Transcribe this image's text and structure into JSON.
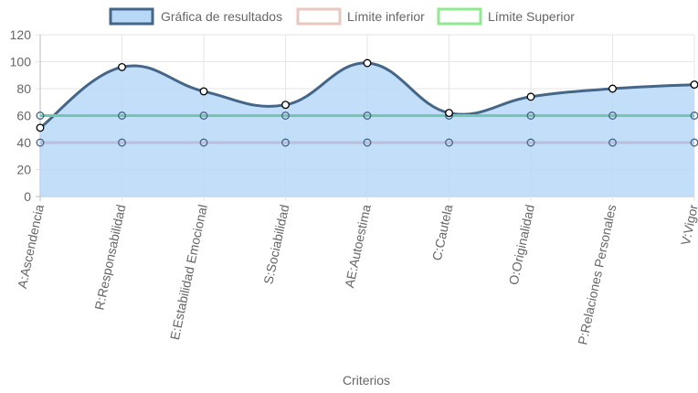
{
  "chart_data": {
    "type": "line",
    "categories": [
      "A:Ascendencia",
      "R:Responsabilidad",
      "E:Estabilidad Emocional",
      "S:Sociabilidad",
      "AE:Autoestima",
      "C:Cautela",
      "O:Originalidad",
      "P:Relaciones Personales",
      "V:Vigor"
    ],
    "series": [
      {
        "name": "Gráfica de resultados",
        "values": [
          51,
          96,
          78,
          68,
          99,
          62,
          74,
          80,
          83
        ],
        "fill": true,
        "line_color": "#446688",
        "fill_color": "#b8d8f8"
      },
      {
        "name": "Límite inferior",
        "values": [
          40,
          40,
          40,
          40,
          40,
          40,
          40,
          40,
          40
        ],
        "fill": false,
        "line_color": "#e8c8c0",
        "plotted_color": "#b8c0dc"
      },
      {
        "name": "Límite Superior",
        "values": [
          60,
          60,
          60,
          60,
          60,
          60,
          60,
          60,
          60
        ],
        "fill": false,
        "line_color": "#90e890",
        "plotted_color": "#70c8b0"
      }
    ],
    "xlabel": "Criterios",
    "ylabel": "",
    "ylim": [
      0,
      120
    ],
    "yticks": [
      0,
      20,
      40,
      60,
      80,
      100,
      120
    ],
    "grid": true,
    "legend_position": "top"
  }
}
